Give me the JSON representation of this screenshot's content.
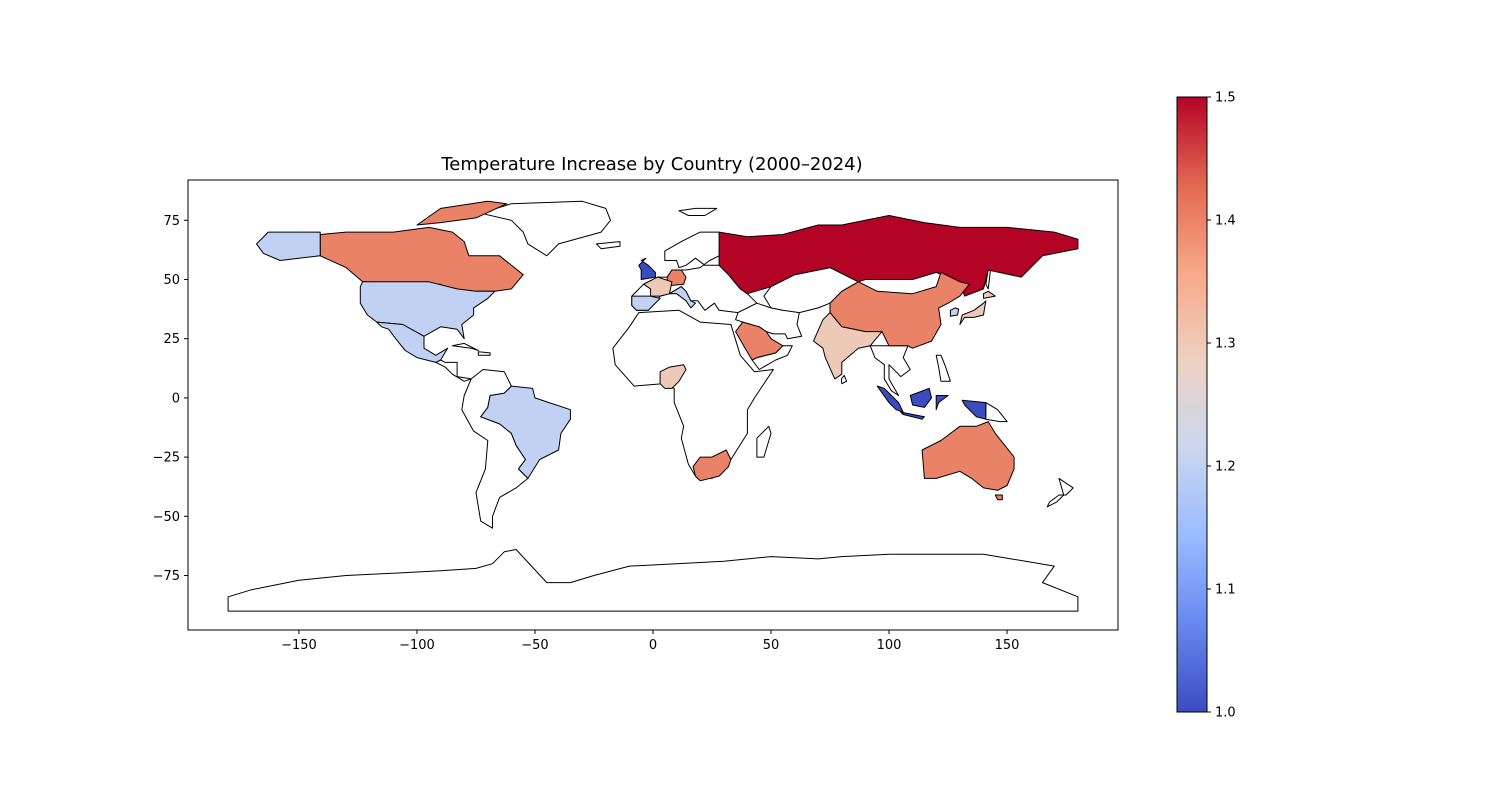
{
  "chart_data": {
    "type": "heatmap",
    "title": "Temperature Increase by Country (2000–2024)",
    "xlabel": "",
    "ylabel": "",
    "xlim": [
      -197,
      197
    ],
    "ylim": [
      -98,
      92
    ],
    "xticks": [
      -150,
      -100,
      -50,
      0,
      50,
      100,
      150
    ],
    "xtick_labels": [
      "−150",
      "−100",
      "−50",
      "0",
      "50",
      "100",
      "150"
    ],
    "yticks": [
      75,
      50,
      25,
      0,
      -25,
      -50,
      -75
    ],
    "ytick_labels": [
      "75",
      "50",
      "25",
      "0",
      "−25",
      "−50",
      "−75"
    ],
    "grid": false,
    "colormap": "coolwarm",
    "no_data_color": "#ffffff",
    "colorbar": {
      "range": [
        1.0,
        1.5
      ],
      "ticks": [
        1.0,
        1.1,
        1.2,
        1.3,
        1.4,
        1.5
      ],
      "tick_labels": [
        "1.0",
        "1.1",
        "1.2",
        "1.3",
        "1.4",
        "1.5"
      ],
      "stops": [
        "#3b4cc0",
        "#6788ee",
        "#9abbff",
        "#c9d7f0",
        "#edd1c2",
        "#f7a889",
        "#e26952",
        "#b40426"
      ]
    },
    "regions": [
      {
        "name": "Russia",
        "value": 1.5
      },
      {
        "name": "Canada",
        "value": 1.4
      },
      {
        "name": "China",
        "value": 1.4
      },
      {
        "name": "Australia",
        "value": 1.4
      },
      {
        "name": "South Africa",
        "value": 1.4
      },
      {
        "name": "Saudi Arabia",
        "value": 1.4
      },
      {
        "name": "Germany",
        "value": 1.4
      },
      {
        "name": "India",
        "value": 1.3
      },
      {
        "name": "Nigeria",
        "value": 1.3
      },
      {
        "name": "France",
        "value": 1.3
      },
      {
        "name": "Japan",
        "value": 1.3
      },
      {
        "name": "United States",
        "value": 1.2
      },
      {
        "name": "Mexico",
        "value": 1.2
      },
      {
        "name": "Brazil",
        "value": 1.2
      },
      {
        "name": "Spain",
        "value": 1.2
      },
      {
        "name": "Italy",
        "value": 1.2
      },
      {
        "name": "South Korea",
        "value": 1.2
      },
      {
        "name": "United Kingdom",
        "value": 1.0
      },
      {
        "name": "Indonesia",
        "value": 1.0
      }
    ]
  }
}
